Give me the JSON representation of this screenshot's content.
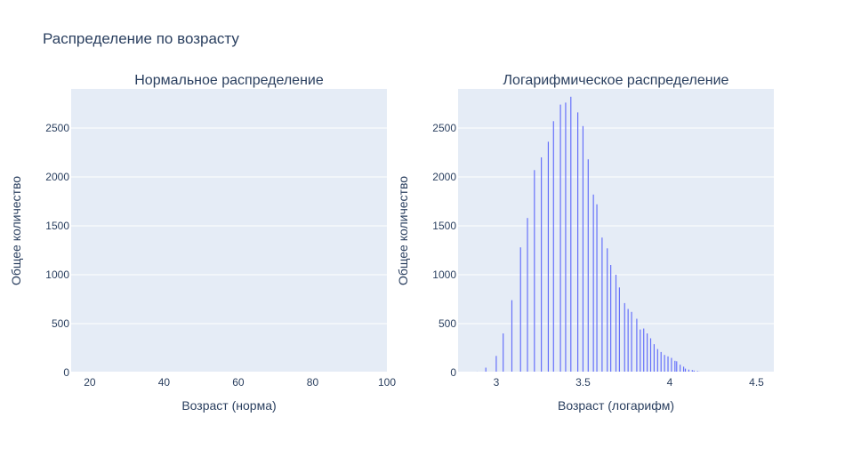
{
  "title": "Распределение по возрасту",
  "chart_data": [
    {
      "type": "bar",
      "title": "Нормальное распределение",
      "xlabel": "Возраст (норма)",
      "ylabel": "Общее количество",
      "xlim": [
        15,
        100
      ],
      "ylim": [
        0,
        2900
      ],
      "xticks": [
        20,
        40,
        60,
        80,
        100
      ],
      "yticks": [
        0,
        500,
        1000,
        1500,
        2000,
        2500
      ],
      "grid": true,
      "bar_width": 0,
      "x": [],
      "values": []
    },
    {
      "type": "bar",
      "title": "Логарифмическое распределение",
      "xlabel": "Возраст (логарифм)",
      "ylabel": "Общее количество",
      "xlim": [
        2.78,
        4.6
      ],
      "ylim": [
        0,
        2900
      ],
      "xticks": [
        3,
        3.5,
        4,
        4.5
      ],
      "yticks": [
        0,
        500,
        1000,
        1500,
        2000,
        2500
      ],
      "grid": true,
      "bar_width": 0.006,
      "x": [
        2.89,
        2.94,
        3.0,
        3.04,
        3.09,
        3.14,
        3.18,
        3.22,
        3.26,
        3.3,
        3.33,
        3.37,
        3.4,
        3.43,
        3.47,
        3.5,
        3.53,
        3.56,
        3.58,
        3.61,
        3.64,
        3.66,
        3.69,
        3.71,
        3.74,
        3.76,
        3.78,
        3.81,
        3.83,
        3.85,
        3.87,
        3.89,
        3.91,
        3.93,
        3.95,
        3.97,
        3.99,
        4.01,
        4.03,
        4.04,
        4.06,
        4.08,
        4.09,
        4.11,
        4.13,
        4.14,
        4.16,
        4.17,
        4.19,
        4.2,
        4.22
      ],
      "values": [
        10,
        50,
        170,
        400,
        740,
        1280,
        1580,
        2070,
        2200,
        2360,
        2570,
        2740,
        2760,
        2820,
        2660,
        2520,
        2180,
        1820,
        1720,
        1380,
        1270,
        1100,
        1000,
        870,
        710,
        650,
        620,
        550,
        440,
        450,
        400,
        350,
        290,
        240,
        210,
        180,
        165,
        150,
        120,
        115,
        80,
        60,
        40,
        30,
        25,
        20,
        15,
        10,
        8,
        5,
        3
      ]
    }
  ]
}
